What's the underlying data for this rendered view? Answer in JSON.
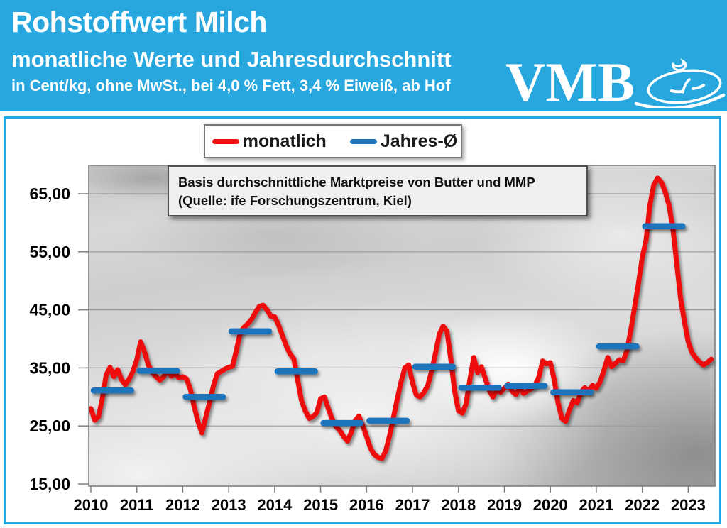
{
  "colors": {
    "header_bg": "#28a7df",
    "panel_border": "#28a7df",
    "monthly_line": "#ee1111",
    "average_line": "#1b74bc",
    "gridline": "#9a9a9a",
    "plot_border": "#7f7f7f"
  },
  "header": {
    "title": "Rohstoffwert Milch",
    "subtitle": "monatliche Werte und Jahresdurchschnitt",
    "spec_line": "in Cent/kg, ohne MwSt., bei 4,0 % Fett, 3,4 % Eiweiß, ab Hof",
    "logo_text": "VMB"
  },
  "legend": {
    "monthly_label": "monatlich",
    "average_label": "Jahres-Ø"
  },
  "annotation": {
    "line1": "Basis durchschnittliche Marktpreise von Butter und MMP",
    "line2": "(Quelle: ife Forschungszentrum, Kiel)"
  },
  "chart_data": {
    "type": "line",
    "title": "Rohstoffwert Milch, monatliche Werte und Jahresdurchschnitt",
    "unit": "Cent/kg",
    "grid": true,
    "ylim": [
      15,
      70
    ],
    "y_ticks": [
      15,
      25,
      35,
      45,
      55,
      65
    ],
    "y_tick_labels": [
      "15,00",
      "25,00",
      "35,00",
      "45,00",
      "55,00",
      "65,00"
    ],
    "x_year_labels": [
      "2010",
      "2011",
      "2012",
      "2013",
      "2014",
      "2015",
      "2016",
      "2017",
      "2018",
      "2019",
      "2020",
      "2021",
      "2022",
      "2023"
    ],
    "series": [
      {
        "name": "monatlich",
        "style": "line",
        "start_month": "2010-01",
        "values": [
          28.0,
          26.0,
          26.6,
          29.8,
          33.8,
          35.1,
          33.5,
          34.7,
          33.0,
          32.1,
          33.1,
          34.4,
          36.4,
          39.5,
          37.8,
          35.5,
          34.3,
          33.5,
          32.9,
          33.5,
          34.6,
          33.6,
          34.1,
          33.3,
          33.5,
          33.1,
          31.3,
          28.3,
          25.7,
          23.8,
          26.5,
          29.1,
          31.9,
          34.0,
          34.4,
          34.8,
          35.1,
          35.3,
          38.0,
          41.0,
          42.0,
          42.6,
          43.4,
          44.6,
          45.6,
          45.8,
          45.0,
          43.9,
          43.8,
          42.4,
          40.6,
          38.8,
          37.4,
          36.6,
          33.0,
          29.4,
          27.6,
          26.3,
          26.6,
          27.3,
          29.7,
          30.0,
          28.0,
          26.2,
          24.9,
          24.2,
          23.2,
          22.4,
          23.9,
          25.9,
          26.7,
          25.1,
          23.2,
          21.2,
          20.1,
          19.6,
          19.4,
          20.7,
          23.3,
          26.4,
          29.6,
          32.6,
          35.0,
          35.5,
          32.5,
          30.3,
          30.0,
          30.8,
          32.0,
          34.5,
          37.5,
          40.8,
          42.2,
          41.3,
          36.5,
          31.0,
          27.6,
          27.2,
          28.8,
          33.0,
          36.8,
          34.2,
          35.2,
          33.2,
          31.2,
          30.0,
          31.2,
          30.8,
          31.5,
          32.2,
          31.0,
          30.4,
          31.6,
          30.6,
          31.0,
          31.4,
          32.0,
          33.4,
          36.2,
          35.7,
          35.9,
          33.0,
          29.0,
          26.3,
          25.8,
          27.8,
          29.4,
          29.0,
          30.8,
          31.6,
          31.0,
          32.0,
          31.5,
          32.6,
          34.6,
          36.8,
          35.2,
          35.8,
          36.4,
          36.2,
          38.0,
          41.5,
          45.5,
          49.5,
          54.0,
          57.0,
          63.0,
          66.5,
          67.7,
          67.0,
          65.3,
          63.0,
          59.0,
          53.0,
          47.0,
          43.0,
          39.5,
          37.6,
          36.7,
          36.0,
          35.5,
          35.9,
          36.5
        ]
      },
      {
        "name": "Jahres-Ø",
        "style": "yearly-average-segments",
        "years": [
          2010,
          2011,
          2012,
          2013,
          2014,
          2015,
          2016,
          2017,
          2018,
          2019,
          2020,
          2021,
          2022
        ],
        "values": [
          31.1,
          34.5,
          30.0,
          41.3,
          34.4,
          25.5,
          25.9,
          35.2,
          31.6,
          31.9,
          30.8,
          38.7,
          59.4
        ]
      }
    ]
  }
}
